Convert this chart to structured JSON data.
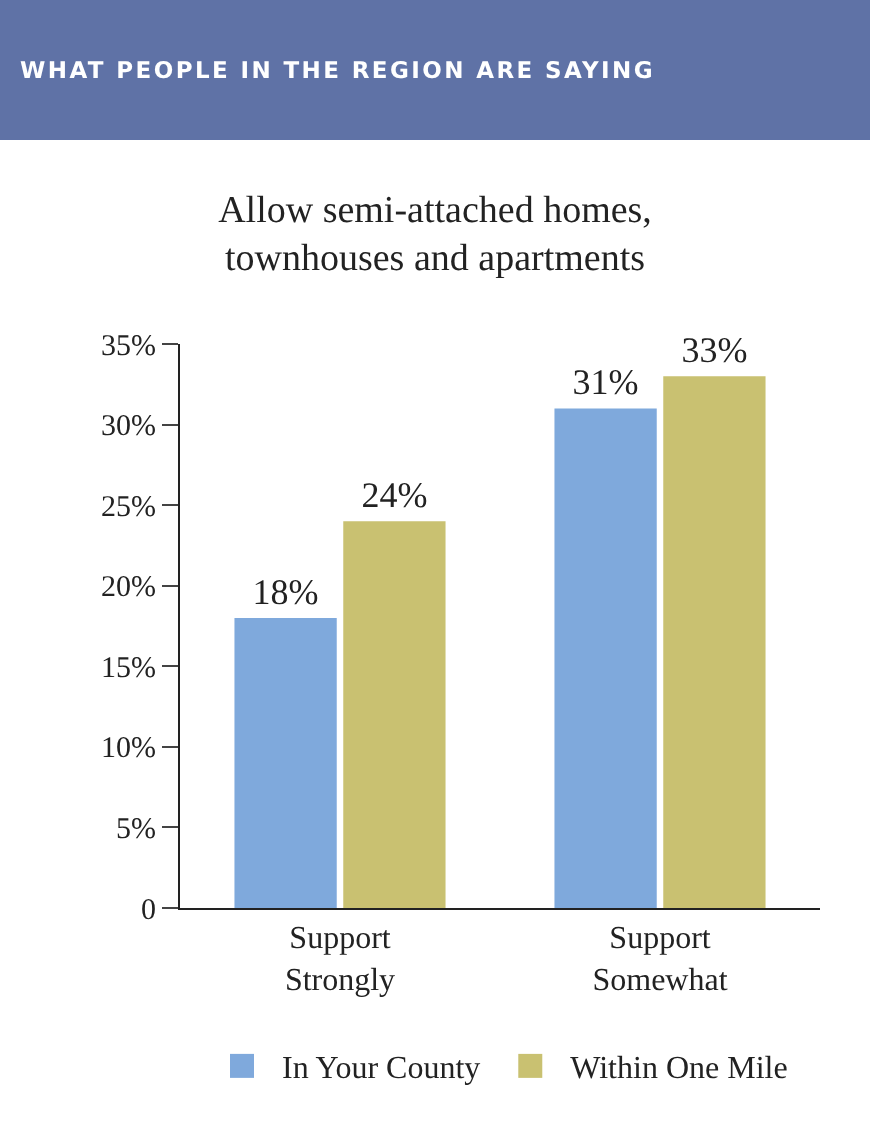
{
  "chart_data": {
    "type": "bar",
    "title": "WHAT PEOPLE IN THE REGION ARE SAYING",
    "subtitle": "Allow semi-attached homes, townhouses and apartments",
    "categories": [
      "Support Strongly",
      "Support Somewhat"
    ],
    "series": [
      {
        "name": "In Your County",
        "color": "#7fa9dc",
        "values": [
          18,
          31
        ],
        "value_labels": [
          "18%",
          "31%"
        ]
      },
      {
        "name": "Within One Mile",
        "color": "#c9c171",
        "values": [
          24,
          33
        ],
        "value_labels": [
          "24%",
          "33%"
        ]
      }
    ],
    "ylim": [
      0,
      35
    ],
    "yticks": [
      0,
      {
        "value": 5,
        "label": "5%"
      },
      {
        "value": 10,
        "label": "10%"
      },
      {
        "value": 15,
        "label": "15%"
      },
      {
        "value": 20,
        "label": "20%"
      },
      {
        "value": 25,
        "label": "25%"
      },
      {
        "value": 30,
        "label": "30%"
      },
      {
        "value": 35,
        "label": "35%"
      }
    ],
    "grid": false,
    "legend": "bottom"
  }
}
